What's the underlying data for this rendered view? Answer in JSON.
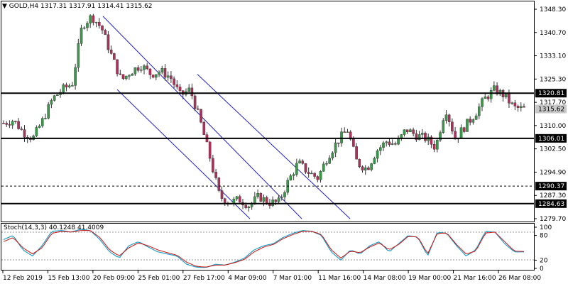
{
  "header": {
    "arrow": "▼",
    "symbol": "GOLD,H4",
    "open": "1317.31",
    "high": "1317.91",
    "low": "1314.41",
    "close": "1315.62"
  },
  "price_axis": {
    "ticks": [
      "1348.30",
      "1340.70",
      "1333.10",
      "1325.30",
      "1317.70",
      "1310.00",
      "1302.50",
      "1294.90",
      "1287.30",
      "1279.70"
    ]
  },
  "levels": [
    {
      "label": "1320.81",
      "value": 1320.81,
      "style": "solid"
    },
    {
      "label": "1315.62",
      "value": 1315.62,
      "style": "current"
    },
    {
      "label": "1306.01",
      "value": 1306.01,
      "style": "solid"
    },
    {
      "label": "1290.37",
      "value": 1290.37,
      "style": "dashed"
    },
    {
      "label": "1284.63",
      "value": 1284.63,
      "style": "solid"
    }
  ],
  "stoch": {
    "label": "Stoch(14,3,3) 40.1248 41.4009",
    "ticks": [
      "100",
      "80",
      "20",
      "0"
    ]
  },
  "time_axis": {
    "labels": [
      "12 Feb 2019",
      "15 Feb 13:00",
      "20 Feb 09:00",
      "25 Feb 01:00",
      "27 Feb 17:00",
      "4 Mar 09:00",
      "7 Mar 01:00",
      "11 Mar 16:00",
      "14 Mar 08:00",
      "19 Mar 00:00",
      "21 Mar 16:00",
      "26 Mar 08:00"
    ]
  },
  "colors": {
    "bull": "#3a9a4a",
    "bear": "#b0305a",
    "channel": "#2020c8",
    "stoch_main": "#20a0c8",
    "stoch_signal": "#d01010"
  },
  "chart_data": {
    "type": "candlestick",
    "symbol": "GOLD,H4",
    "ylim": [
      1279.7,
      1348.3
    ],
    "x": [
      "12 Feb 2019",
      "15 Feb 13:00",
      "20 Feb 09:00",
      "25 Feb 01:00",
      "27 Feb 17:00",
      "4 Mar 09:00",
      "7 Mar 01:00",
      "11 Mar 16:00",
      "14 Mar 08:00",
      "19 Mar 00:00",
      "21 Mar 16:00",
      "26 Mar 08:00"
    ],
    "close_path": [
      1311,
      1312,
      1308,
      1306,
      1312,
      1319,
      1322,
      1324,
      1343,
      1346,
      1342,
      1333,
      1325,
      1328,
      1330,
      1327,
      1328,
      1326,
      1320,
      1322,
      1312,
      1300,
      1287,
      1285,
      1286,
      1284,
      1287,
      1285,
      1285,
      1292,
      1298,
      1295,
      1293,
      1300,
      1305,
      1309,
      1298,
      1296,
      1302,
      1305,
      1304,
      1309,
      1307,
      1306,
      1303,
      1316,
      1306,
      1310,
      1314,
      1319,
      1322,
      1320,
      1316,
      1315.6
    ],
    "stoch_main_path": [
      70,
      80,
      45,
      30,
      55,
      90,
      92,
      88,
      95,
      92,
      70,
      40,
      25,
      55,
      65,
      52,
      40,
      35,
      30,
      10,
      3,
      2,
      10,
      8,
      15,
      25,
      45,
      55,
      60,
      75,
      85,
      92,
      90,
      80,
      40,
      20,
      45,
      35,
      55,
      65,
      40,
      60,
      80,
      75,
      30,
      88,
      85,
      55,
      30,
      45,
      90,
      88,
      60,
      40,
      40
    ],
    "stoch_signal_path": [
      65,
      75,
      50,
      35,
      50,
      85,
      90,
      88,
      92,
      92,
      75,
      45,
      30,
      50,
      62,
      55,
      45,
      38,
      32,
      15,
      5,
      3,
      8,
      8,
      14,
      22,
      40,
      52,
      58,
      72,
      82,
      90,
      90,
      82,
      45,
      25,
      42,
      38,
      52,
      62,
      45,
      58,
      78,
      76,
      35,
      85,
      86,
      58,
      35,
      42,
      86,
      88,
      65,
      42,
      41
    ]
  }
}
